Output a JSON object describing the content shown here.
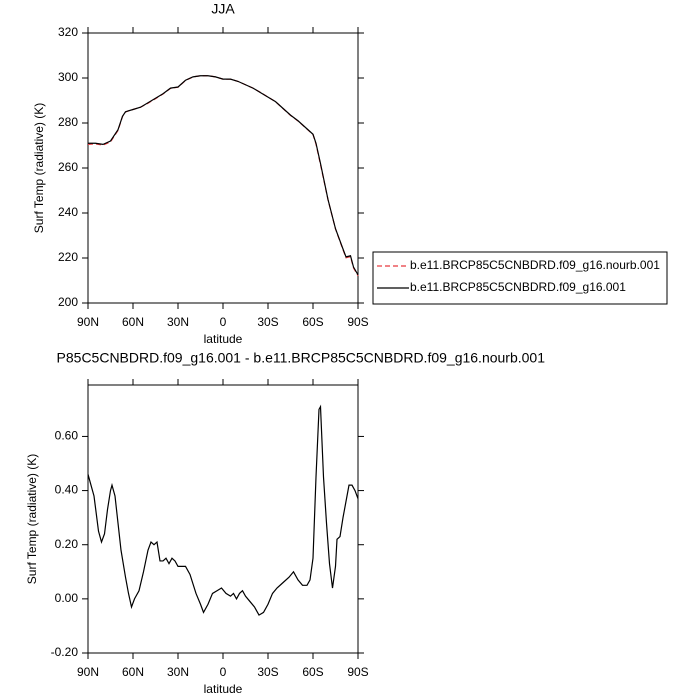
{
  "chart_data": [
    {
      "type": "line",
      "title": "JJA",
      "x_label": "latitude",
      "y_label": "Surf Temp (radiative) (K)",
      "x": [
        90,
        85,
        80,
        75,
        70,
        67,
        65,
        60,
        55,
        50,
        45,
        40,
        35,
        30,
        25,
        20,
        15,
        10,
        5,
        0,
        -5,
        -10,
        -15,
        -20,
        -25,
        -30,
        -35,
        -40,
        -45,
        -50,
        -55,
        -60,
        -62,
        -65,
        -70,
        -75,
        -80,
        -82,
        -85,
        -87,
        -90
      ],
      "series": [
        {
          "name": "b.e11.BRCP85C5CNBDRD.f09_g16.nourb.001",
          "color": "#e8383d",
          "linestyle": "dashed",
          "values": [
            270.5,
            270.7,
            270.2,
            271.6,
            276.7,
            282.9,
            284.9,
            286.0,
            287.0,
            288.8,
            290.8,
            292.9,
            295.4,
            295.9,
            298.9,
            300.5,
            301.0,
            301.0,
            300.5,
            299.5,
            299.5,
            298.5,
            297.0,
            295.5,
            293.6,
            291.5,
            289.5,
            286.4,
            283.4,
            280.9,
            277.9,
            274.9,
            270.6,
            261.5,
            245.9,
            232.9,
            223.7,
            220.1,
            220.6,
            215.6,
            212.1
          ]
        },
        {
          "name": "b.e11.BRCP85C5CNBDRD.f09_g16.001",
          "color": "#000000",
          "linestyle": "solid",
          "values": [
            271,
            271,
            270.5,
            272,
            277,
            283,
            285,
            286,
            287,
            289,
            291,
            293,
            295.5,
            296,
            299,
            300.5,
            301,
            301,
            300.5,
            299.5,
            299.5,
            298.5,
            297,
            295.5,
            293.5,
            291.5,
            289.5,
            286.5,
            283.5,
            281,
            278,
            275,
            271,
            262,
            246,
            233,
            224,
            220.5,
            221,
            216,
            212.5
          ]
        }
      ],
      "xlim": [
        90,
        -90
      ],
      "xticks": [
        {
          "value": 90,
          "label": "90N"
        },
        {
          "value": 60,
          "label": "60N"
        },
        {
          "value": 30,
          "label": "30N"
        },
        0,
        {
          "value": -30,
          "label": "30S"
        },
        {
          "value": -60,
          "label": "60S"
        },
        {
          "value": -90,
          "label": "90S"
        }
      ],
      "ylim": [
        200,
        320
      ],
      "yticks": [
        200,
        220,
        240,
        260,
        280,
        300,
        320
      ],
      "legend": "right"
    },
    {
      "type": "line",
      "title": "P85C5CNBDRD.f09_g16.001 - b.e11.BRCP85C5CNBDRD.f09_g16.nourb.001",
      "x_label": "latitude",
      "y_label": "Surf Temp (radiative) (K)",
      "x": [
        90,
        88,
        86,
        83,
        81,
        79,
        77,
        75,
        74,
        72,
        70,
        68,
        65,
        63,
        61,
        59,
        56,
        53,
        50,
        48,
        46,
        44,
        42,
        40,
        38,
        36,
        34,
        32,
        30,
        25,
        22,
        18,
        15,
        13,
        10,
        7,
        4,
        1,
        -2,
        -5,
        -7,
        -9,
        -11,
        -13,
        -15,
        -18,
        -21,
        -24,
        -27,
        -30,
        -33,
        -36,
        -40,
        -44,
        -47,
        -50,
        -53,
        -56,
        -58,
        -60,
        -62,
        -64,
        -65,
        -67,
        -69,
        -71,
        -73,
        -75,
        -76,
        -78,
        -80,
        -82,
        -84,
        -86,
        -88,
        -90
      ],
      "series": [
        {
          "color": "#000000",
          "linestyle": "solid",
          "values": [
            0.46,
            0.42,
            0.38,
            0.25,
            0.21,
            0.24,
            0.33,
            0.4,
            0.42,
            0.38,
            0.28,
            0.18,
            0.08,
            0.02,
            -0.03,
            0.0,
            0.03,
            0.1,
            0.18,
            0.21,
            0.2,
            0.21,
            0.14,
            0.14,
            0.15,
            0.13,
            0.15,
            0.14,
            0.12,
            0.12,
            0.09,
            0.02,
            -0.02,
            -0.05,
            -0.02,
            0.02,
            0.03,
            0.04,
            0.02,
            0.01,
            0.02,
            0.0,
            0.02,
            0.03,
            0.01,
            -0.01,
            -0.03,
            -0.06,
            -0.05,
            -0.02,
            0.02,
            0.04,
            0.06,
            0.08,
            0.1,
            0.07,
            0.05,
            0.05,
            0.07,
            0.15,
            0.45,
            0.7,
            0.71,
            0.45,
            0.28,
            0.13,
            0.04,
            0.12,
            0.22,
            0.23,
            0.3,
            0.36,
            0.42,
            0.42,
            0.4,
            0.37
          ]
        }
      ],
      "xlim": [
        90,
        -90
      ],
      "xticks": [
        {
          "value": 90,
          "label": "90N"
        },
        {
          "value": 60,
          "label": "60N"
        },
        {
          "value": 30,
          "label": "30N"
        },
        0,
        {
          "value": -30,
          "label": "30S"
        },
        {
          "value": -60,
          "label": "60S"
        },
        {
          "value": -90,
          "label": "90S"
        }
      ],
      "ylim": [
        -0.2,
        0.79
      ],
      "yticks": [
        {
          "value": -0.2,
          "label": "-0.20"
        },
        {
          "value": 0,
          "label": "0.00"
        },
        {
          "value": 0.2,
          "label": "0.20"
        },
        {
          "value": 0.4,
          "label": "0.40"
        },
        {
          "value": 0.6,
          "label": "0.60"
        }
      ]
    }
  ]
}
